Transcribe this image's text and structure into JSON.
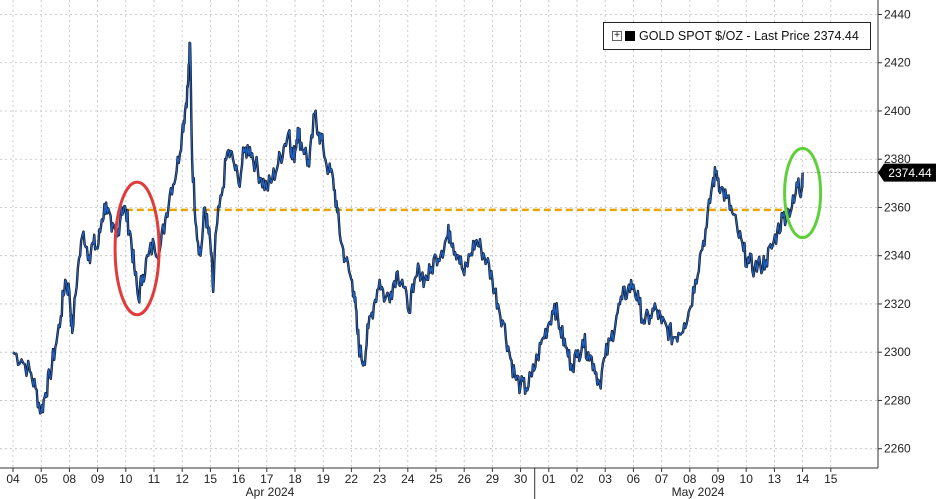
{
  "chart_data": {
    "type": "line",
    "legend": {
      "prefix": "GOLD SPOT $/OZ - Last Price",
      "value": "2374.44",
      "placement": "top-right"
    },
    "last_price_label": "2374.44",
    "y_axis": {
      "range": [
        2252,
        2446
      ],
      "ticks": [
        "2260",
        "2280",
        "2300",
        "2320",
        "2340",
        "2360",
        "2380",
        "2400",
        "2420",
        "2440"
      ],
      "side": "right",
      "grid": true
    },
    "x_axis": {
      "day_ticks": [
        "04",
        "05",
        "08",
        "09",
        "10",
        "11",
        "12",
        "15",
        "16",
        "17",
        "18",
        "19",
        "22",
        "23",
        "24",
        "25",
        "26",
        "29",
        "30",
        "01",
        "02",
        "03",
        "06",
        "07",
        "08",
        "09",
        "10",
        "13",
        "14",
        "15"
      ],
      "month_labels": [
        "Apr 2024",
        "May 2024"
      ],
      "grid": true
    },
    "reference_line": {
      "value": 2359,
      "style": "dashed",
      "color": "#e8a400"
    },
    "annotations": [
      {
        "shape": "ellipse",
        "color": "#e03c3c",
        "around_day": "10",
        "y_range": [
          2318,
          2368
        ]
      },
      {
        "shape": "ellipse",
        "color": "#5ed13a",
        "around_day": "15",
        "y_range": [
          2350,
          2382
        ]
      }
    ],
    "series": [
      {
        "color": "#1f5fbf",
        "points": [
          [
            0.0,
            2300
          ],
          [
            0.3,
            2297
          ],
          [
            0.6,
            2292
          ],
          [
            0.8,
            2285
          ],
          [
            1.0,
            2275
          ],
          [
            1.15,
            2283
          ],
          [
            1.3,
            2290
          ],
          [
            1.5,
            2302
          ],
          [
            1.7,
            2315
          ],
          [
            1.85,
            2330
          ],
          [
            2.0,
            2325
          ],
          [
            2.1,
            2308
          ],
          [
            2.3,
            2335
          ],
          [
            2.5,
            2350
          ],
          [
            2.7,
            2340
          ],
          [
            2.85,
            2345
          ],
          [
            3.0,
            2343
          ],
          [
            3.15,
            2355
          ],
          [
            3.3,
            2362
          ],
          [
            3.5,
            2350
          ],
          [
            3.7,
            2348
          ],
          [
            3.85,
            2360
          ],
          [
            4.0,
            2358
          ],
          [
            4.15,
            2350
          ],
          [
            4.3,
            2335
          ],
          [
            4.45,
            2322
          ],
          [
            4.6,
            2332
          ],
          [
            4.8,
            2340
          ],
          [
            5.0,
            2345
          ],
          [
            5.2,
            2342
          ],
          [
            5.4,
            2355
          ],
          [
            5.6,
            2368
          ],
          [
            5.8,
            2375
          ],
          [
            6.0,
            2392
          ],
          [
            6.1,
            2400
          ],
          [
            6.2,
            2410
          ],
          [
            6.28,
            2428
          ],
          [
            6.35,
            2380
          ],
          [
            6.5,
            2352
          ],
          [
            6.65,
            2340
          ],
          [
            6.8,
            2360
          ],
          [
            6.9,
            2352
          ],
          [
            7.0,
            2345
          ],
          [
            7.1,
            2325
          ],
          [
            7.2,
            2350
          ],
          [
            7.4,
            2365
          ],
          [
            7.6,
            2383
          ],
          [
            7.8,
            2380
          ],
          [
            8.0,
            2370
          ],
          [
            8.2,
            2383
          ],
          [
            8.4,
            2385
          ],
          [
            8.6,
            2378
          ],
          [
            8.8,
            2372
          ],
          [
            9.0,
            2368
          ],
          [
            9.2,
            2372
          ],
          [
            9.4,
            2378
          ],
          [
            9.6,
            2385
          ],
          [
            9.8,
            2392
          ],
          [
            9.9,
            2380
          ],
          [
            10.0,
            2383
          ],
          [
            10.1,
            2393
          ],
          [
            10.2,
            2387
          ],
          [
            10.35,
            2384
          ],
          [
            10.5,
            2377
          ],
          [
            10.7,
            2399
          ],
          [
            10.85,
            2391
          ],
          [
            11.0,
            2385
          ],
          [
            11.2,
            2375
          ],
          [
            11.35,
            2372
          ],
          [
            11.5,
            2358
          ],
          [
            11.65,
            2345
          ],
          [
            11.8,
            2338
          ],
          [
            12.0,
            2330
          ],
          [
            12.1,
            2325
          ],
          [
            12.2,
            2310
          ],
          [
            12.3,
            2300
          ],
          [
            12.45,
            2296
          ],
          [
            12.6,
            2310
          ],
          [
            12.8,
            2320
          ],
          [
            13.0,
            2330
          ],
          [
            13.2,
            2322
          ],
          [
            13.4,
            2325
          ],
          [
            13.6,
            2333
          ],
          [
            13.8,
            2330
          ],
          [
            14.0,
            2318
          ],
          [
            14.2,
            2325
          ],
          [
            14.4,
            2335
          ],
          [
            14.6,
            2330
          ],
          [
            14.8,
            2333
          ],
          [
            15.0,
            2340
          ],
          [
            15.2,
            2342
          ],
          [
            15.4,
            2348
          ],
          [
            15.5,
            2350
          ],
          [
            15.6,
            2345
          ],
          [
            15.8,
            2340
          ],
          [
            16.0,
            2332
          ],
          [
            16.2,
            2340
          ],
          [
            16.4,
            2346
          ],
          [
            16.6,
            2343
          ],
          [
            16.8,
            2338
          ],
          [
            17.0,
            2330
          ],
          [
            17.2,
            2320
          ],
          [
            17.4,
            2312
          ],
          [
            17.6,
            2300
          ],
          [
            17.8,
            2290
          ],
          [
            18.0,
            2286
          ],
          [
            18.2,
            2285
          ],
          [
            18.4,
            2290
          ],
          [
            18.6,
            2298
          ],
          [
            18.8,
            2306
          ],
          [
            19.0,
            2312
          ],
          [
            19.2,
            2320
          ],
          [
            19.4,
            2310
          ],
          [
            19.6,
            2302
          ],
          [
            19.8,
            2295
          ],
          [
            20.0,
            2298
          ],
          [
            20.2,
            2305
          ],
          [
            20.4,
            2300
          ],
          [
            20.6,
            2295
          ],
          [
            20.8,
            2287
          ],
          [
            21.0,
            2298
          ],
          [
            21.2,
            2305
          ],
          [
            21.4,
            2315
          ],
          [
            21.6,
            2322
          ],
          [
            21.8,
            2326
          ],
          [
            22.0,
            2328
          ],
          [
            22.2,
            2320
          ],
          [
            22.4,
            2312
          ],
          [
            22.6,
            2315
          ],
          [
            22.8,
            2318
          ],
          [
            23.0,
            2312
          ],
          [
            23.2,
            2310
          ],
          [
            23.4,
            2306
          ],
          [
            23.6,
            2308
          ],
          [
            23.8,
            2312
          ],
          [
            24.0,
            2318
          ],
          [
            24.2,
            2330
          ],
          [
            24.4,
            2342
          ],
          [
            24.6,
            2352
          ],
          [
            24.8,
            2370
          ],
          [
            24.95,
            2375
          ],
          [
            25.1,
            2368
          ],
          [
            25.3,
            2364
          ],
          [
            25.5,
            2358
          ],
          [
            25.7,
            2350
          ],
          [
            25.9,
            2342
          ],
          [
            26.1,
            2337
          ],
          [
            26.3,
            2335
          ],
          [
            26.5,
            2336
          ],
          [
            26.7,
            2338
          ],
          [
            26.9,
            2343
          ],
          [
            27.1,
            2350
          ],
          [
            27.3,
            2356
          ],
          [
            27.5,
            2359
          ],
          [
            27.7,
            2362
          ],
          [
            27.85,
            2372
          ],
          [
            27.95,
            2366
          ],
          [
            28.0,
            2374.44
          ]
        ]
      }
    ]
  }
}
